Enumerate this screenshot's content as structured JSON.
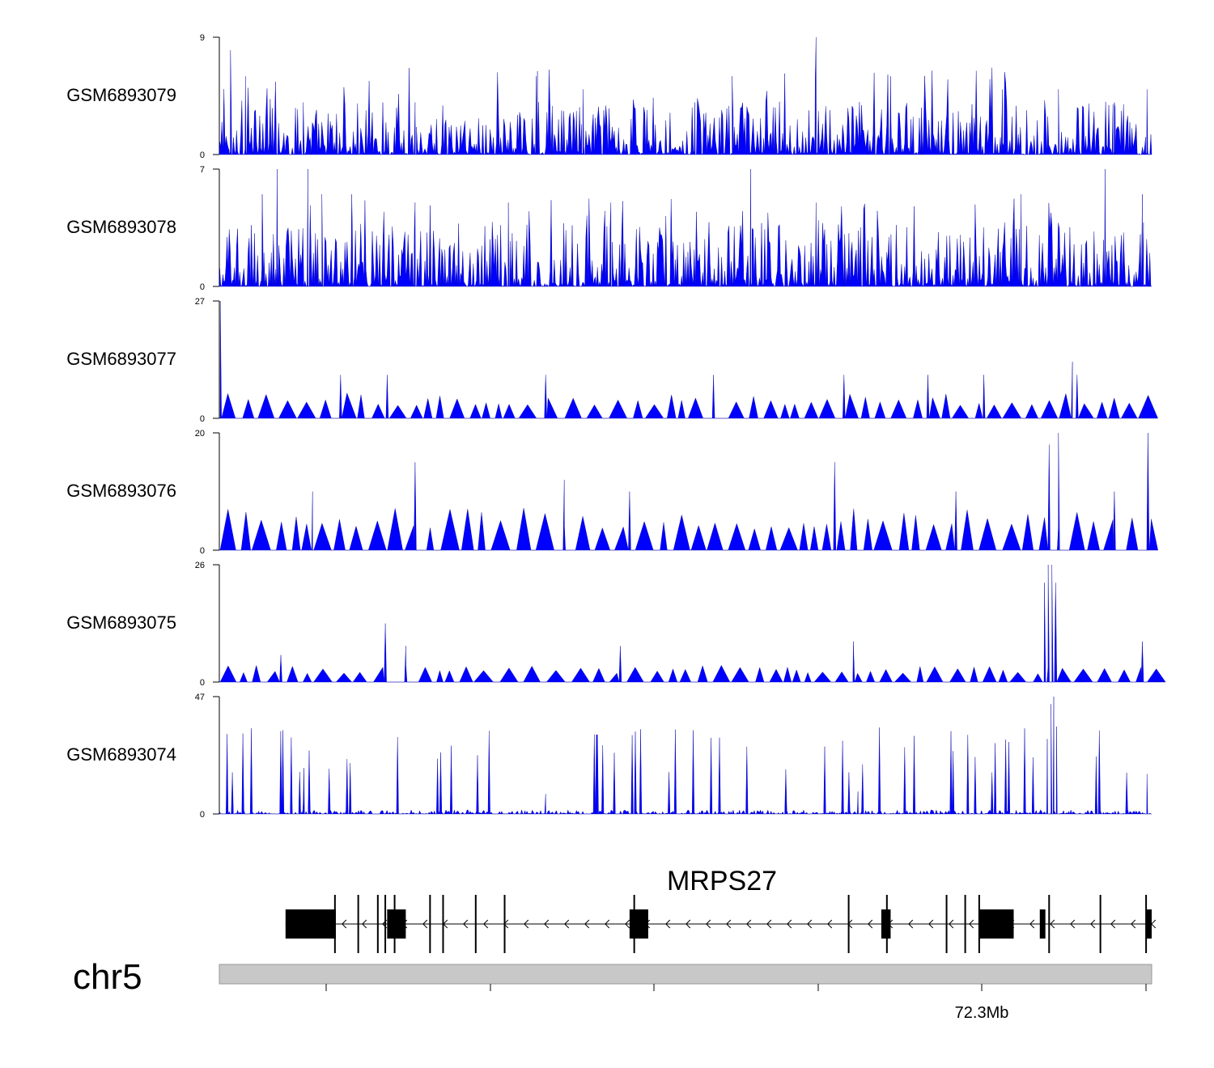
{
  "chart_data": {
    "type": "area",
    "title": "",
    "chromosome": "chr5",
    "x_tick_label": "72.3Mb",
    "colors": {
      "signal": "#0000ff",
      "gene": "#000000",
      "ideogram": "#c8c8c8"
    },
    "tracks": [
      {
        "name": "GSM6893079",
        "ylim": [
          0,
          9
        ],
        "ytick_labels": [
          "0",
          "9"
        ],
        "peaks": [
          [
            0.012,
            8
          ],
          [
            0.028,
            6
          ],
          [
            0.09,
            4
          ],
          [
            0.21,
            4
          ],
          [
            0.34,
            6
          ],
          [
            0.39,
            5
          ],
          [
            0.51,
            4
          ],
          [
            0.55,
            6
          ],
          [
            0.64,
            9
          ],
          [
            0.72,
            6
          ],
          [
            0.84,
            5
          ],
          [
            0.9,
            5
          ],
          [
            0.96,
            4
          ],
          [
            0.995,
            5
          ]
        ]
      },
      {
        "name": "GSM6893078",
        "ylim": [
          0,
          7
        ],
        "ytick_labels": [
          "0",
          "7"
        ],
        "peaks": [
          [
            0.046,
            5.5
          ],
          [
            0.062,
            7
          ],
          [
            0.095,
            7
          ],
          [
            0.11,
            5.5
          ],
          [
            0.142,
            5.5
          ],
          [
            0.21,
            5
          ],
          [
            0.31,
            5
          ],
          [
            0.42,
            5
          ],
          [
            0.57,
            7
          ],
          [
            0.64,
            5
          ],
          [
            0.86,
            5.5
          ],
          [
            0.95,
            7
          ],
          [
            0.99,
            5.5
          ]
        ]
      },
      {
        "name": "GSM6893077",
        "ylim": [
          0,
          27
        ],
        "ytick_labels": [
          "0",
          "27"
        ],
        "peaks": [
          [
            0.001,
            27
          ],
          [
            0.13,
            10
          ],
          [
            0.18,
            10
          ],
          [
            0.35,
            10
          ],
          [
            0.53,
            10
          ],
          [
            0.67,
            10
          ],
          [
            0.76,
            10
          ],
          [
            0.82,
            10
          ],
          [
            0.92,
            10
          ],
          [
            0.915,
            13
          ]
        ]
      },
      {
        "name": "GSM6893076",
        "ylim": [
          0,
          20
        ],
        "ytick_labels": [
          "0",
          "20"
        ],
        "peaks": [
          [
            0.1,
            10
          ],
          [
            0.21,
            15
          ],
          [
            0.37,
            12
          ],
          [
            0.44,
            10
          ],
          [
            0.66,
            15
          ],
          [
            0.79,
            10
          ],
          [
            0.89,
            18
          ],
          [
            0.9,
            20
          ],
          [
            0.96,
            10
          ],
          [
            0.996,
            20
          ]
        ]
      },
      {
        "name": "GSM6893075",
        "ylim": [
          0,
          26
        ],
        "ytick_labels": [
          "0",
          "26"
        ],
        "peaks": [
          [
            0.066,
            6
          ],
          [
            0.178,
            13
          ],
          [
            0.2,
            8
          ],
          [
            0.43,
            8
          ],
          [
            0.68,
            9
          ],
          [
            0.885,
            22
          ],
          [
            0.889,
            26
          ],
          [
            0.893,
            26
          ],
          [
            0.897,
            22
          ],
          [
            0.99,
            9
          ]
        ]
      },
      {
        "name": "GSM6893074",
        "ylim": [
          0,
          47
        ],
        "ytick_labels": [
          "0",
          "47"
        ],
        "peaks": [
          [
            0.09,
            5
          ],
          [
            0.35,
            8
          ],
          [
            0.685,
            9
          ],
          [
            0.888,
            30
          ],
          [
            0.892,
            44
          ],
          [
            0.895,
            47
          ],
          [
            0.898,
            35
          ],
          [
            0.995,
            16
          ]
        ]
      }
    ],
    "gene": {
      "name": "MRPS27",
      "strand": "-",
      "exons": [
        [
          0.071,
          0.125
        ],
        [
          0.18,
          0.2
        ],
        [
          0.44,
          0.46
        ],
        [
          0.71,
          0.72
        ],
        [
          0.815,
          0.852
        ],
        [
          0.88,
          0.886
        ],
        [
          0.994,
          1.0
        ]
      ],
      "thin_marks": [
        0.124,
        0.149,
        0.17,
        0.178,
        0.188,
        0.226,
        0.24,
        0.275,
        0.306,
        0.445,
        0.675,
        0.716,
        0.78,
        0.8,
        0.815,
        0.89,
        0.945,
        0.994
      ]
    }
  }
}
